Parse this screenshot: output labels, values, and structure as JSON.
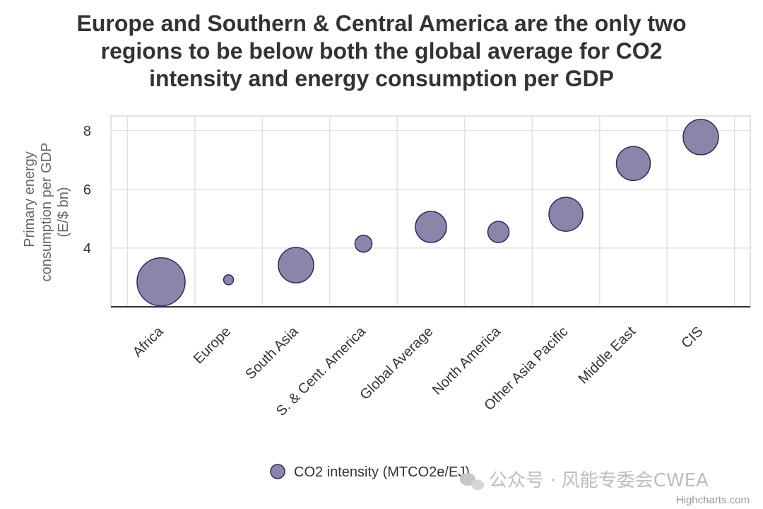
{
  "title_lines": [
    "Europe and Southern & Central America are the only two",
    "regions to be below both the global average for CO2",
    "intensity and energy consumption per GDP"
  ],
  "chart_data": {
    "type": "bubble",
    "title": "Europe and Southern & Central America are the only two regions to be below both the global average for CO2 intensity and energy consumption per GDP",
    "ylabel_lines": [
      "Primary energy",
      "consumption per GDP",
      "(E/$ bn)"
    ],
    "xlabel": "",
    "categories": [
      "Africa",
      "Europe",
      "South Asia",
      "S. & Cent. America",
      "Global Average",
      "North America",
      "Other Asia Pacific",
      "Middle East",
      "CIS"
    ],
    "ylim": [
      2,
      8.5
    ],
    "yticks": [
      4,
      6,
      8
    ],
    "grid": true,
    "legend_position": "bottom-center",
    "series": [
      {
        "name": "CO2 intensity (MTCO2e/EJ)",
        "color": "#8a86aa",
        "stroke": "#2f2a5e",
        "values": [
          2.85,
          2.92,
          3.42,
          4.15,
          4.72,
          4.55,
          5.15,
          6.88,
          7.78
        ],
        "sizes": [
          34,
          7,
          25,
          12,
          22,
          15,
          24,
          24,
          25
        ]
      }
    ]
  },
  "watermark": {
    "icon": "wechat-icon",
    "text": "公众号 · 风能专委会CWEA"
  },
  "credits": "Highcharts.com"
}
